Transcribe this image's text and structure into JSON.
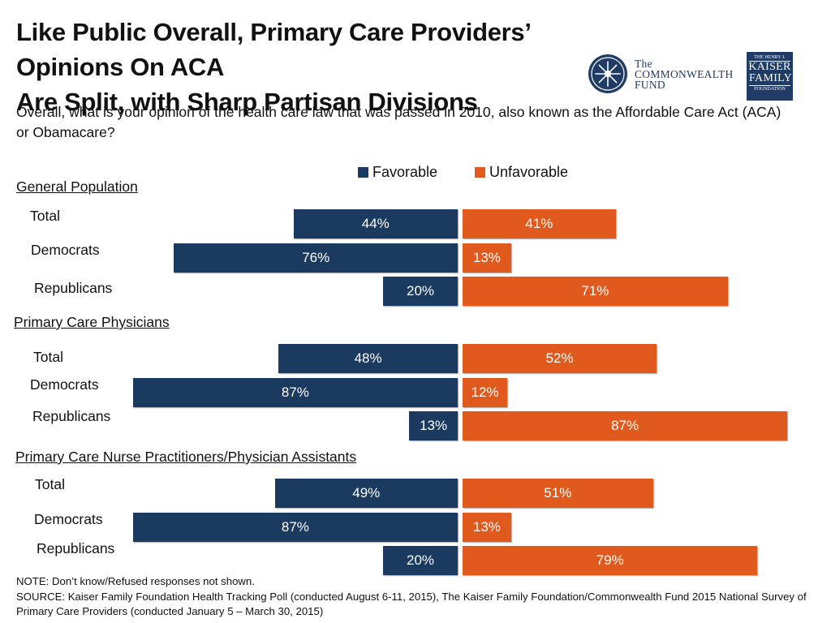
{
  "header": {
    "title_line1": "Like Public Overall, Primary Care Providers’ Opinions On ACA",
    "title_line2": "Are Split, with Sharp Partisan Divisions",
    "question": "Overall, what is your opinion of the health care law that was passed in 2010, also known as the Affordable Care Act (ACA) or Obamacare?"
  },
  "logos": {
    "commonwealth": {
      "line1": "The",
      "line2": "COMMONWEALTH",
      "line3": "FUND"
    },
    "kaiser": {
      "line1": "THE HENRY J.",
      "line2": "KAISER",
      "line3": "FAMILY",
      "line4": "FOUNDATION"
    }
  },
  "colors": {
    "favorable": "#1b3a5f",
    "unfavorable": "#e05a1e",
    "brand": "#1f3b66"
  },
  "chart_data": {
    "type": "bar",
    "orientation": "horizontal-diverging",
    "title": "Overall, what is your opinion of the health care law that was passed in 2010, also known as the Affordable Care Act (ACA) or Obamacare?",
    "legend": [
      "Favorable",
      "Unfavorable"
    ],
    "legend_position": "top-right",
    "value_suffix": "%",
    "xlim": [
      0,
      100
    ],
    "groups": [
      {
        "name": "General Population",
        "rows": [
          {
            "label": "Total",
            "favorable": 44,
            "unfavorable": 41
          },
          {
            "label": "Democrats",
            "favorable": 76,
            "unfavorable": 13
          },
          {
            "label": "Republicans",
            "favorable": 20,
            "unfavorable": 71
          }
        ]
      },
      {
        "name": "Primary Care Physicians",
        "rows": [
          {
            "label": "Total",
            "favorable": 48,
            "unfavorable": 52
          },
          {
            "label": "Democrats",
            "favorable": 87,
            "unfavorable": 12
          },
          {
            "label": "Republicans",
            "favorable": 13,
            "unfavorable": 87
          }
        ]
      },
      {
        "name": "Primary Care Nurse Practitioners/Physician Assistants",
        "rows": [
          {
            "label": "Total",
            "favorable": 49,
            "unfavorable": 51
          },
          {
            "label": "Democrats",
            "favorable": 87,
            "unfavorable": 13
          },
          {
            "label": "Republicans",
            "favorable": 20,
            "unfavorable": 79
          }
        ]
      }
    ]
  },
  "footer": {
    "note": "NOTE: Don’t know/Refused responses not shown.",
    "source": "SOURCE: Kaiser Family Foundation Health Tracking Poll (conducted August 6-11, 2015), The Kaiser Family Foundation/Commonwealth Fund 2015 National Survey of Primary Care Providers (conducted January 5 – March 30, 2015)"
  }
}
